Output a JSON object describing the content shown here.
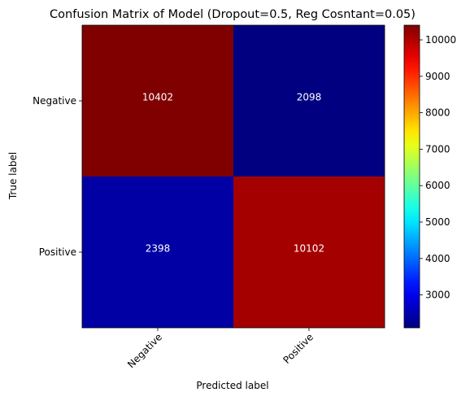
{
  "chart_data": {
    "type": "heatmap",
    "title": "Confusion Matrix of Model (Dropout=0.5, Reg Cosntant=0.05)",
    "xlabel": "Predicted label",
    "ylabel": "True label",
    "x_categories": [
      "Negative",
      "Positive"
    ],
    "y_categories": [
      "Negative",
      "Positive"
    ],
    "values": [
      [
        10402,
        2098
      ],
      [
        2398,
        10102
      ]
    ],
    "colormap": "jet",
    "value_range": [
      2098,
      10402
    ],
    "colorbar_ticks": [
      3000,
      4000,
      5000,
      6000,
      7000,
      8000,
      9000,
      10000
    ],
    "cell_text_color": "#ffffff"
  }
}
